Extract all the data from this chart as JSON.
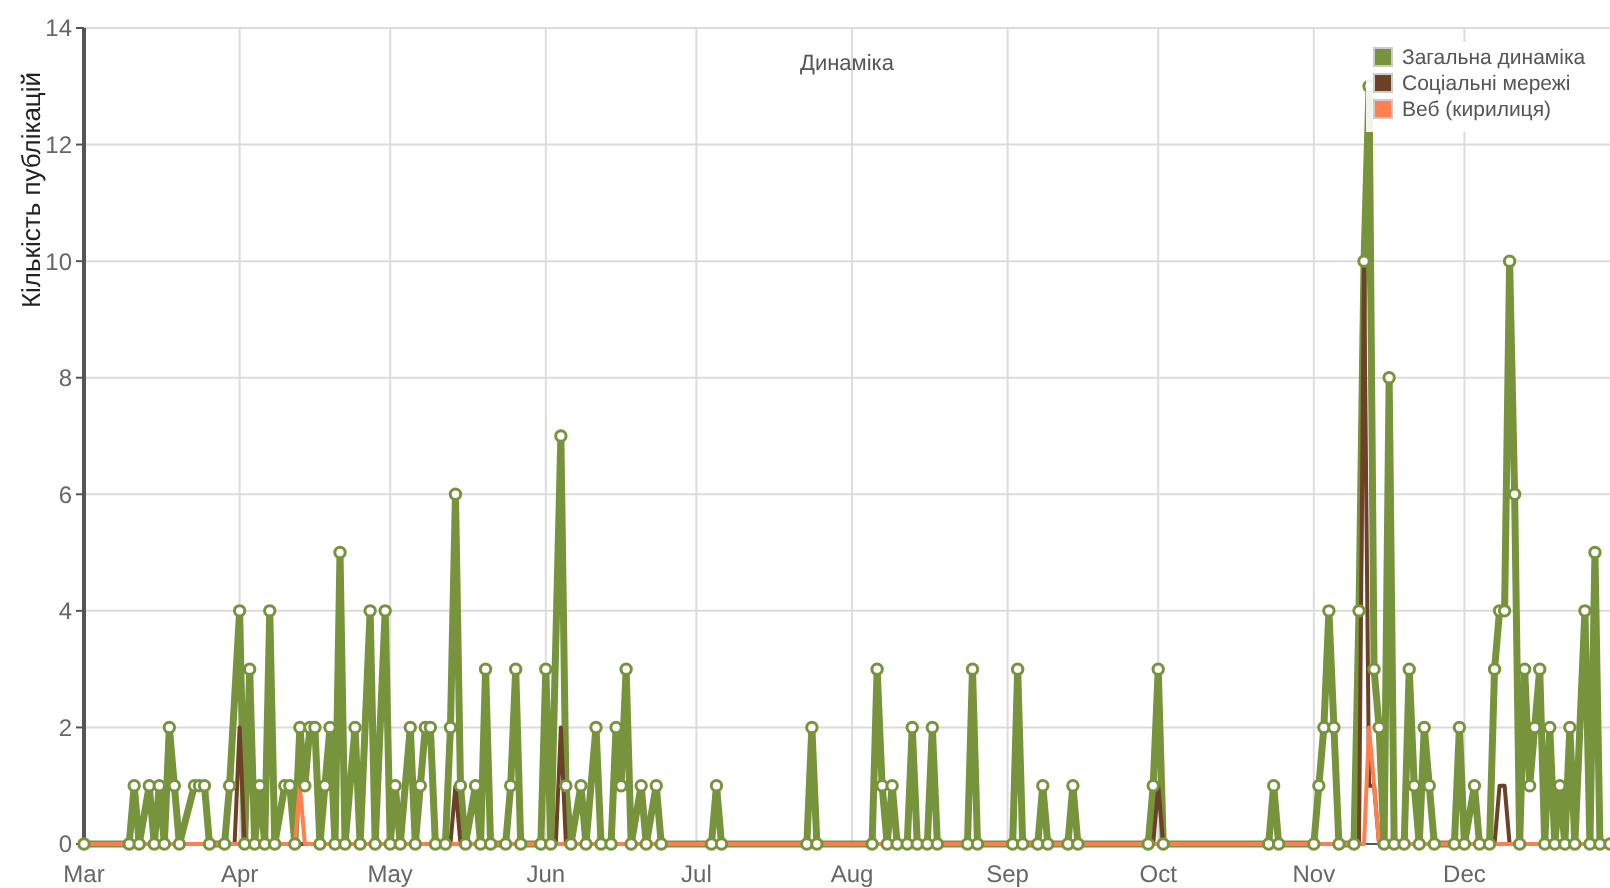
{
  "chart_data": {
    "type": "line",
    "title": "Динаміка",
    "ylabel": "Кількість публікацій",
    "ylim": [
      0,
      14
    ],
    "yticks": [
      0,
      2,
      4,
      6,
      8,
      10,
      12,
      14
    ],
    "xlim": [
      "--03-01",
      "--12-30"
    ],
    "xticks": [
      {
        "value": "--03-01",
        "label": "Mar"
      },
      {
        "value": "--04-01",
        "label": "Apr"
      },
      {
        "value": "--05-01",
        "label": "May"
      },
      {
        "value": "--06-01",
        "label": "Jun"
      },
      {
        "value": "--07-01",
        "label": "Jul"
      },
      {
        "value": "--08-01",
        "label": "Aug"
      },
      {
        "value": "--09-01",
        "label": "Sep"
      },
      {
        "value": "--10-01",
        "label": "Oct"
      },
      {
        "value": "--11-01",
        "label": "Nov"
      },
      {
        "value": "--12-01",
        "label": "Dec"
      }
    ],
    "grid": true,
    "legend": "top right",
    "line_style": "solid",
    "series": [
      {
        "name": "Загальна динаміка",
        "color": "#77933c",
        "marker": "circle",
        "x": [
          "--03-01",
          "--03-10",
          "--03-11",
          "--03-12",
          "--03-14",
          "--03-15",
          "--03-16",
          "--03-17",
          "--03-18",
          "--03-19",
          "--03-20",
          "--03-23",
          "--03-24",
          "--03-25",
          "--03-26",
          "--03-29",
          "--03-30",
          "--04-01",
          "--04-02",
          "--04-03",
          "--04-04",
          "--04-05",
          "--04-06",
          "--04-07",
          "--04-08",
          "--04-10",
          "--04-11",
          "--04-12",
          "--04-13",
          "--04-14",
          "--04-15",
          "--04-16",
          "--04-17",
          "--04-18",
          "--04-19",
          "--04-20",
          "--04-21",
          "--04-22",
          "--04-24",
          "--04-25",
          "--04-27",
          "--04-28",
          "--04-30",
          "--05-01",
          "--05-02",
          "--05-03",
          "--05-05",
          "--05-06",
          "--05-07",
          "--05-08",
          "--05-09",
          "--05-10",
          "--05-12",
          "--05-13",
          "--05-14",
          "--05-15",
          "--05-16",
          "--05-18",
          "--05-19",
          "--05-20",
          "--05-21",
          "--05-24",
          "--05-25",
          "--05-26",
          "--05-27",
          "--05-31",
          "--06-01",
          "--06-02",
          "--06-04",
          "--06-05",
          "--06-06",
          "--06-08",
          "--06-09",
          "--06-11",
          "--06-12",
          "--06-14",
          "--06-15",
          "--06-16",
          "--06-17",
          "--06-18",
          "--06-20",
          "--06-21",
          "--06-23",
          "--06-24",
          "--07-04",
          "--07-05",
          "--07-06",
          "--07-23",
          "--07-24",
          "--07-25",
          "--08-05",
          "--08-06",
          "--08-07",
          "--08-08",
          "--08-09",
          "--08-10",
          "--08-12",
          "--08-13",
          "--08-14",
          "--08-16",
          "--08-17",
          "--08-18",
          "--08-24",
          "--08-25",
          "--08-26",
          "--09-02",
          "--09-03",
          "--09-04",
          "--09-07",
          "--09-08",
          "--09-09",
          "--09-13",
          "--09-14",
          "--09-15",
          "--09-29",
          "--09-30",
          "--10-01",
          "--10-02",
          "--10-23",
          "--10-24",
          "--10-25",
          "--11-01",
          "--11-02",
          "--11-03",
          "--11-04",
          "--11-05",
          "--11-06",
          "--11-09",
          "--11-10",
          "--11-11",
          "--11-12",
          "--11-13",
          "--11-14",
          "--11-15",
          "--11-16",
          "--11-17",
          "--11-19",
          "--11-20",
          "--11-21",
          "--11-22",
          "--11-23",
          "--11-24",
          "--11-25",
          "--11-29",
          "--11-30",
          "--12-01",
          "--12-03",
          "--12-04",
          "--12-06",
          "--12-07",
          "--12-08",
          "--12-09",
          "--12-10",
          "--12-11",
          "--12-12",
          "--12-13",
          "--12-14",
          "--12-15",
          "--12-16",
          "--12-17",
          "--12-18",
          "--12-19",
          "--12-20",
          "--12-21",
          "--12-22",
          "--12-23",
          "--12-25",
          "--12-26",
          "--12-27",
          "--12-28",
          "--12-30"
        ],
        "values": [
          0,
          0,
          1,
          0,
          1,
          0,
          1,
          0,
          2,
          1,
          0,
          1,
          1,
          1,
          0,
          0,
          1,
          4,
          0,
          3,
          0,
          1,
          0,
          4,
          0,
          1,
          1,
          0,
          2,
          1,
          2,
          2,
          0,
          1,
          2,
          0,
          5,
          0,
          2,
          0,
          4,
          0,
          4,
          0,
          1,
          0,
          2,
          0,
          1,
          2,
          2,
          0,
          0,
          2,
          6,
          1,
          0,
          1,
          0,
          3,
          0,
          0,
          1,
          3,
          0,
          0,
          3,
          0,
          7,
          1,
          0,
          1,
          0,
          2,
          0,
          0,
          2,
          1,
          3,
          0,
          1,
          0,
          1,
          0,
          0,
          1,
          0,
          0,
          2,
          0,
          0,
          3,
          1,
          0,
          1,
          0,
          0,
          2,
          0,
          0,
          2,
          0,
          0,
          3,
          0,
          0,
          3,
          0,
          0,
          1,
          0,
          0,
          1,
          0,
          0,
          1,
          3,
          0,
          0,
          1,
          0,
          0,
          1,
          2,
          4,
          2,
          0,
          0,
          4,
          10,
          13,
          3,
          2,
          0,
          8,
          0,
          0,
          3,
          1,
          0,
          2,
          1,
          0,
          0,
          2,
          0,
          1,
          0,
          0,
          3,
          4,
          4,
          10,
          6,
          0,
          3,
          1,
          2,
          3,
          0,
          2,
          0,
          1,
          0,
          2,
          0,
          4,
          0,
          5,
          0,
          0
        ]
      },
      {
        "name": "Соціальні мережі",
        "color": "#6b4226",
        "x": [
          "--03-01",
          "--03-31",
          "--04-01",
          "--04-02",
          "--05-13",
          "--05-14",
          "--05-15",
          "--06-03",
          "--06-04",
          "--06-05",
          "--09-30",
          "--10-01",
          "--10-02",
          "--11-10",
          "--11-11",
          "--11-12",
          "--11-13",
          "--11-14",
          "--12-07",
          "--12-08",
          "--12-09",
          "--12-10",
          "--12-30"
        ],
        "values": [
          0,
          0,
          2,
          0,
          0,
          1,
          0,
          0,
          2,
          0,
          0,
          1,
          0,
          0,
          10,
          1,
          1,
          0,
          0,
          1,
          1,
          0,
          0
        ]
      },
      {
        "name": "Веб (кирилиця)",
        "color": "#ff7f50",
        "x": [
          "--03-01",
          "--04-12",
          "--04-13",
          "--04-14",
          "--11-11",
          "--11-12",
          "--11-13",
          "--11-14",
          "--12-30"
        ],
        "values": [
          0,
          0,
          1,
          0,
          0,
          2,
          1,
          0,
          0
        ]
      }
    ]
  }
}
